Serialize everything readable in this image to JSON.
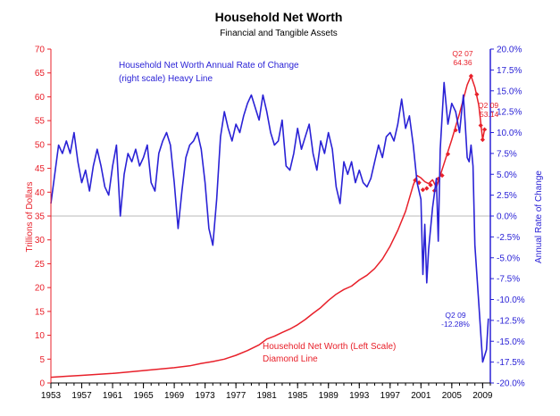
{
  "chart_data": {
    "type": "line",
    "title": "Household Net Worth",
    "subtitle": "Financial and Tangible Assets",
    "x_ticks": [
      "1953",
      "1957",
      "1961",
      "1965",
      "1969",
      "1973",
      "1977",
      "1981",
      "1985",
      "1989",
      "1993",
      "1997",
      "2001",
      "2005",
      "2009"
    ],
    "xlim": [
      1953,
      2010
    ],
    "grid": false,
    "left_axis": {
      "label": "Trillions of Dollars",
      "ticks": [
        "0",
        "5",
        "10",
        "15",
        "20",
        "25",
        "30",
        "35",
        "40",
        "45",
        "50",
        "55",
        "60",
        "65",
        "70"
      ],
      "ylim": [
        0,
        70
      ],
      "color": "#e8202a"
    },
    "right_axis": {
      "label": "Annual Rate of Change",
      "ticks": [
        "-20.0%",
        "-17.5%",
        "-15.0%",
        "-12.5%",
        "-10.0%",
        "-7.5%",
        "-5.0%",
        "-2.5%",
        "0.0%",
        "2.5%",
        "5.0%",
        "7.5%",
        "10.0%",
        "12.5%",
        "15.0%",
        "17.5%",
        "20.0%"
      ],
      "ylim": [
        -20,
        20
      ],
      "color": "#2a22d6"
    },
    "series": [
      {
        "axis": "left",
        "color": "#e8202a",
        "style": "line-with-diamond-markers",
        "label_lines": [
          "Household Net Worth (Left Scale)",
          "Diamond Line"
        ],
        "points": [
          [
            1953.0,
            1.2
          ],
          [
            1955.0,
            1.4
          ],
          [
            1957.0,
            1.6
          ],
          [
            1959.0,
            1.8
          ],
          [
            1961.0,
            2.0
          ],
          [
            1963.0,
            2.3
          ],
          [
            1965.0,
            2.6
          ],
          [
            1967.0,
            2.9
          ],
          [
            1969.0,
            3.2
          ],
          [
            1971.0,
            3.6
          ],
          [
            1972.5,
            4.1
          ],
          [
            1974.0,
            4.5
          ],
          [
            1975.5,
            5.0
          ],
          [
            1977.0,
            5.8
          ],
          [
            1978.5,
            6.8
          ],
          [
            1980.0,
            8.0
          ],
          [
            1981.0,
            9.2
          ],
          [
            1982.0,
            9.8
          ],
          [
            1983.0,
            10.6
          ],
          [
            1984.0,
            11.3
          ],
          [
            1985.0,
            12.2
          ],
          [
            1986.0,
            13.3
          ],
          [
            1987.0,
            14.6
          ],
          [
            1988.0,
            15.8
          ],
          [
            1989.0,
            17.3
          ],
          [
            1990.0,
            18.6
          ],
          [
            1991.0,
            19.6
          ],
          [
            1992.0,
            20.3
          ],
          [
            1993.0,
            21.6
          ],
          [
            1994.0,
            22.6
          ],
          [
            1995.0,
            24.0
          ],
          [
            1996.0,
            26.0
          ],
          [
            1997.0,
            28.7
          ],
          [
            1998.0,
            32.0
          ],
          [
            1999.0,
            36.0
          ],
          [
            2000.0,
            41.5
          ],
          [
            2000.5,
            43.5
          ],
          [
            2001.0,
            43.0
          ],
          [
            2001.5,
            42.2
          ],
          [
            2002.0,
            41.8
          ],
          [
            2002.5,
            42.6
          ],
          [
            2003.0,
            41.0
          ],
          [
            2003.5,
            43.5
          ],
          [
            2004.0,
            46.0
          ],
          [
            2005.0,
            51.0
          ],
          [
            2006.0,
            56.5
          ],
          [
            2006.5,
            59.5
          ],
          [
            2007.0,
            62.5
          ],
          [
            2007.5,
            64.36
          ],
          [
            2008.0,
            62.0
          ],
          [
            2008.5,
            58.2
          ],
          [
            2009.0,
            51.0
          ],
          [
            2009.25,
            53.14
          ],
          [
            2009.5,
            53.14
          ]
        ],
        "markers": [
          [
            2000.25,
            42.5
          ],
          [
            2000.75,
            42.0
          ],
          [
            2001.25,
            40.5
          ],
          [
            2001.75,
            40.8
          ],
          [
            2002.25,
            41.5
          ],
          [
            2002.75,
            40.3
          ],
          [
            2003.25,
            42.8
          ],
          [
            2003.75,
            43.5
          ],
          [
            2004.5,
            48.0
          ],
          [
            2005.5,
            53.0
          ],
          [
            2007.5,
            64.36
          ],
          [
            2008.25,
            60.5
          ],
          [
            2008.75,
            54.0
          ],
          [
            2009.0,
            51.0
          ],
          [
            2009.25,
            53.14
          ]
        ]
      },
      {
        "axis": "right",
        "color": "#2a22d6",
        "style": "heavy-line",
        "label_lines": [
          "Household Net Worth Annual Rate of Change",
          "(right scale) Heavy Line"
        ],
        "points": [
          [
            1953.0,
            1.5
          ],
          [
            1953.5,
            5.0
          ],
          [
            1954.0,
            8.5
          ],
          [
            1954.5,
            7.5
          ],
          [
            1955.0,
            9.0
          ],
          [
            1955.5,
            7.5
          ],
          [
            1956.0,
            10.0
          ],
          [
            1956.5,
            6.5
          ],
          [
            1957.0,
            4.0
          ],
          [
            1957.5,
            5.5
          ],
          [
            1958.0,
            3.0
          ],
          [
            1958.5,
            6.0
          ],
          [
            1959.0,
            8.0
          ],
          [
            1959.5,
            6.0
          ],
          [
            1960.0,
            3.5
          ],
          [
            1960.5,
            2.5
          ],
          [
            1961.0,
            6.0
          ],
          [
            1961.5,
            8.5
          ],
          [
            1962.0,
            0.0
          ],
          [
            1962.5,
            5.0
          ],
          [
            1963.0,
            7.5
          ],
          [
            1963.5,
            6.5
          ],
          [
            1964.0,
            8.0
          ],
          [
            1964.5,
            6.0
          ],
          [
            1965.0,
            7.0
          ],
          [
            1965.5,
            8.5
          ],
          [
            1966.0,
            4.0
          ],
          [
            1966.5,
            3.0
          ],
          [
            1967.0,
            7.5
          ],
          [
            1967.5,
            9.0
          ],
          [
            1968.0,
            10.0
          ],
          [
            1968.5,
            8.5
          ],
          [
            1969.0,
            4.0
          ],
          [
            1969.5,
            -1.5
          ],
          [
            1970.0,
            3.0
          ],
          [
            1970.5,
            7.0
          ],
          [
            1971.0,
            8.5
          ],
          [
            1971.5,
            9.0
          ],
          [
            1972.0,
            10.0
          ],
          [
            1972.5,
            8.0
          ],
          [
            1973.0,
            4.0
          ],
          [
            1973.5,
            -1.5
          ],
          [
            1974.0,
            -3.5
          ],
          [
            1974.5,
            2.0
          ],
          [
            1975.0,
            9.5
          ],
          [
            1975.5,
            12.5
          ],
          [
            1976.0,
            10.5
          ],
          [
            1976.5,
            9.0
          ],
          [
            1977.0,
            11.0
          ],
          [
            1977.5,
            10.0
          ],
          [
            1978.0,
            12.0
          ],
          [
            1978.5,
            13.5
          ],
          [
            1979.0,
            14.5
          ],
          [
            1979.5,
            13.0
          ],
          [
            1980.0,
            11.5
          ],
          [
            1980.5,
            14.5
          ],
          [
            1981.0,
            12.5
          ],
          [
            1981.5,
            10.0
          ],
          [
            1982.0,
            8.5
          ],
          [
            1982.5,
            9.0
          ],
          [
            1983.0,
            11.5
          ],
          [
            1983.5,
            6.0
          ],
          [
            1984.0,
            5.5
          ],
          [
            1984.5,
            7.5
          ],
          [
            1985.0,
            10.5
          ],
          [
            1985.5,
            8.0
          ],
          [
            1986.0,
            9.5
          ],
          [
            1986.5,
            11.0
          ],
          [
            1987.0,
            7.5
          ],
          [
            1987.5,
            5.5
          ],
          [
            1988.0,
            9.0
          ],
          [
            1988.5,
            7.5
          ],
          [
            1989.0,
            10.0
          ],
          [
            1989.5,
            8.0
          ],
          [
            1990.0,
            3.5
          ],
          [
            1990.5,
            1.5
          ],
          [
            1991.0,
            6.5
          ],
          [
            1991.5,
            5.0
          ],
          [
            1992.0,
            6.5
          ],
          [
            1992.5,
            4.0
          ],
          [
            1993.0,
            5.5
          ],
          [
            1993.5,
            4.0
          ],
          [
            1994.0,
            3.5
          ],
          [
            1994.5,
            4.5
          ],
          [
            1995.0,
            6.5
          ],
          [
            1995.5,
            8.5
          ],
          [
            1996.0,
            7.0
          ],
          [
            1996.5,
            9.5
          ],
          [
            1997.0,
            10.0
          ],
          [
            1997.5,
            9.0
          ],
          [
            1998.0,
            11.0
          ],
          [
            1998.5,
            14.0
          ],
          [
            1999.0,
            10.5
          ],
          [
            1999.5,
            12.0
          ],
          [
            2000.0,
            8.5
          ],
          [
            2000.5,
            4.0
          ],
          [
            2001.0,
            2.0
          ],
          [
            2001.25,
            -7.0
          ],
          [
            2001.5,
            -1.0
          ],
          [
            2001.75,
            -8.0
          ],
          [
            2002.0,
            -4.0
          ],
          [
            2002.5,
            1.0
          ],
          [
            2003.0,
            4.5
          ],
          [
            2003.25,
            -3.0
          ],
          [
            2003.5,
            8.0
          ],
          [
            2004.0,
            16.0
          ],
          [
            2004.5,
            11.0
          ],
          [
            2005.0,
            13.5
          ],
          [
            2005.5,
            12.5
          ],
          [
            2006.0,
            10.0
          ],
          [
            2006.5,
            14.5
          ],
          [
            2006.75,
            11.0
          ],
          [
            2007.0,
            7.0
          ],
          [
            2007.25,
            6.5
          ],
          [
            2007.5,
            8.5
          ],
          [
            2007.75,
            6.0
          ],
          [
            2008.0,
            -3.5
          ],
          [
            2008.5,
            -10.5
          ],
          [
            2009.0,
            -17.5
          ],
          [
            2009.5,
            -16.0
          ],
          [
            2009.75,
            -12.28
          ]
        ]
      }
    ],
    "annotations": [
      {
        "lines": [
          "Q2 07",
          "64.36"
        ],
        "color": "#e8202a"
      },
      {
        "lines": [
          "Q2 09",
          "53.14"
        ],
        "color": "#e8202a"
      },
      {
        "lines": [
          "Q2 09",
          "-12.28%"
        ],
        "color": "#2a22d6"
      }
    ],
    "reference_line": {
      "axis": "right",
      "value": 0,
      "color": "#b8b8b8"
    }
  }
}
